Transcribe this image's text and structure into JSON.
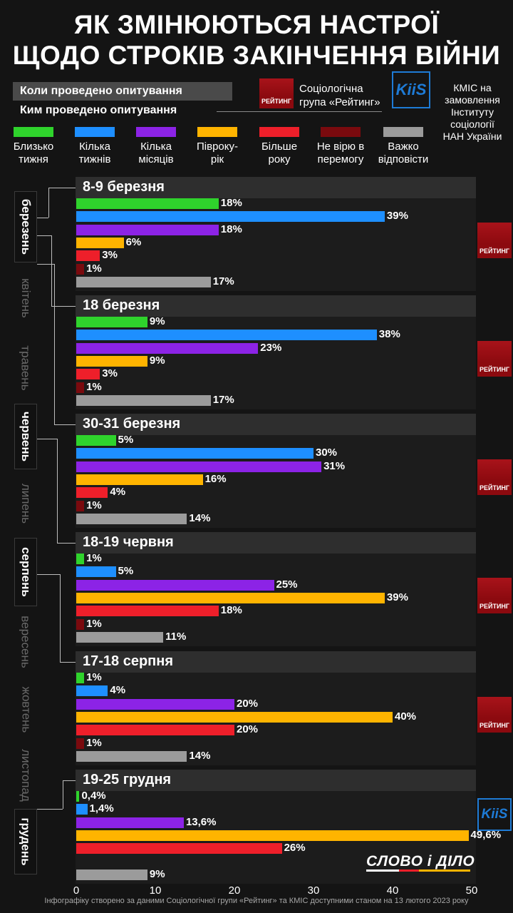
{
  "title": {
    "line1": "ЯК ЗМІНЮЮТЬСЯ НАСТРОЇ",
    "line2": "ЩОДО СТРОКІВ ЗАКІНЧЕННЯ ВІЙНИ"
  },
  "meta": {
    "when_label": "Коли проведено опитування",
    "who_label": "Ким проведено опитування"
  },
  "sources": {
    "rating_logo": "РЕЙТИНГ",
    "rating_text_1": "Соціологічна",
    "rating_text_2": "група «Рейтинг»",
    "kiis_logo_1": "Ki",
    "kiis_logo_2": "iS",
    "kiis_text_1": "КМІС на",
    "kiis_text_2": "замовлення",
    "kiis_text_3": "Інституту",
    "kiis_text_4": "соціології",
    "kiis_text_5": "НАН України"
  },
  "months": [
    "березень",
    "квітень",
    "травень",
    "червень",
    "липень",
    "серпень",
    "вересень",
    "жовтень",
    "листопад",
    "грудень"
  ],
  "brand": "СЛОВО і ДІЛО",
  "footer": "Інфографіку створено за даними Соціологічної групи «Рейтинг» та КМІС доступними станом на 13 лютого 2023 року",
  "chart_data": {
    "type": "bar",
    "orientation": "horizontal",
    "title": "ЯК ЗМІНЮЮТЬСЯ НАСТРОЇ ЩОДО СТРОКІВ ЗАКІНЧЕННЯ ВІЙНИ",
    "xlim": [
      0,
      50
    ],
    "xticks": [
      0,
      10,
      20,
      30,
      40,
      50
    ],
    "unit": "%",
    "categories": [
      {
        "label_1": "Близько",
        "label_2": "тижня",
        "color": "#2fd32c"
      },
      {
        "label_1": "Кілька",
        "label_2": "тижнів",
        "color": "#1e8fff"
      },
      {
        "label_1": "Кілька",
        "label_2": "місяців",
        "color": "#8c23e6"
      },
      {
        "label_1": "Півроку-",
        "label_2": "рік",
        "color": "#ffb400"
      },
      {
        "label_1": "Більше",
        "label_2": "року",
        "color": "#ee1f2a"
      },
      {
        "label_1": "Не вірю в",
        "label_2": "перемогу",
        "color": "#7a0a0e"
      },
      {
        "label_1": "Важко",
        "label_2": "відповісти",
        "color": "#9b9b9b"
      }
    ],
    "surveys": [
      {
        "date": "8-9 березня",
        "source": "rating",
        "values": [
          18,
          39,
          18,
          6,
          3,
          1,
          17
        ],
        "labels": [
          "18%",
          "39%",
          "18%",
          "6%",
          "3%",
          "1%",
          "17%"
        ]
      },
      {
        "date": "18 березня",
        "source": "rating",
        "values": [
          9,
          38,
          23,
          9,
          3,
          1,
          17
        ],
        "labels": [
          "9%",
          "38%",
          "23%",
          "9%",
          "3%",
          "1%",
          "17%"
        ]
      },
      {
        "date": "30-31 березня",
        "source": "rating",
        "values": [
          5,
          30,
          31,
          16,
          4,
          1,
          14
        ],
        "labels": [
          "5%",
          "30%",
          "31%",
          "16%",
          "4%",
          "1%",
          "14%"
        ]
      },
      {
        "date": "18-19 червня",
        "source": "rating",
        "values": [
          1,
          5,
          25,
          39,
          18,
          1,
          11
        ],
        "labels": [
          "1%",
          "5%",
          "25%",
          "39%",
          "18%",
          "1%",
          "11%"
        ]
      },
      {
        "date": "17-18 серпня",
        "source": "rating",
        "values": [
          1,
          4,
          20,
          40,
          20,
          1,
          14
        ],
        "labels": [
          "1%",
          "4%",
          "20%",
          "40%",
          "20%",
          "1%",
          "14%"
        ]
      },
      {
        "date": "19-25 грудня",
        "source": "kiis",
        "values": [
          0.4,
          1.4,
          13.6,
          49.6,
          26,
          null,
          9
        ],
        "labels": [
          "0,4%",
          "1,4%",
          "13,6%",
          "49,6%",
          "26%",
          "",
          "9%"
        ]
      }
    ]
  }
}
